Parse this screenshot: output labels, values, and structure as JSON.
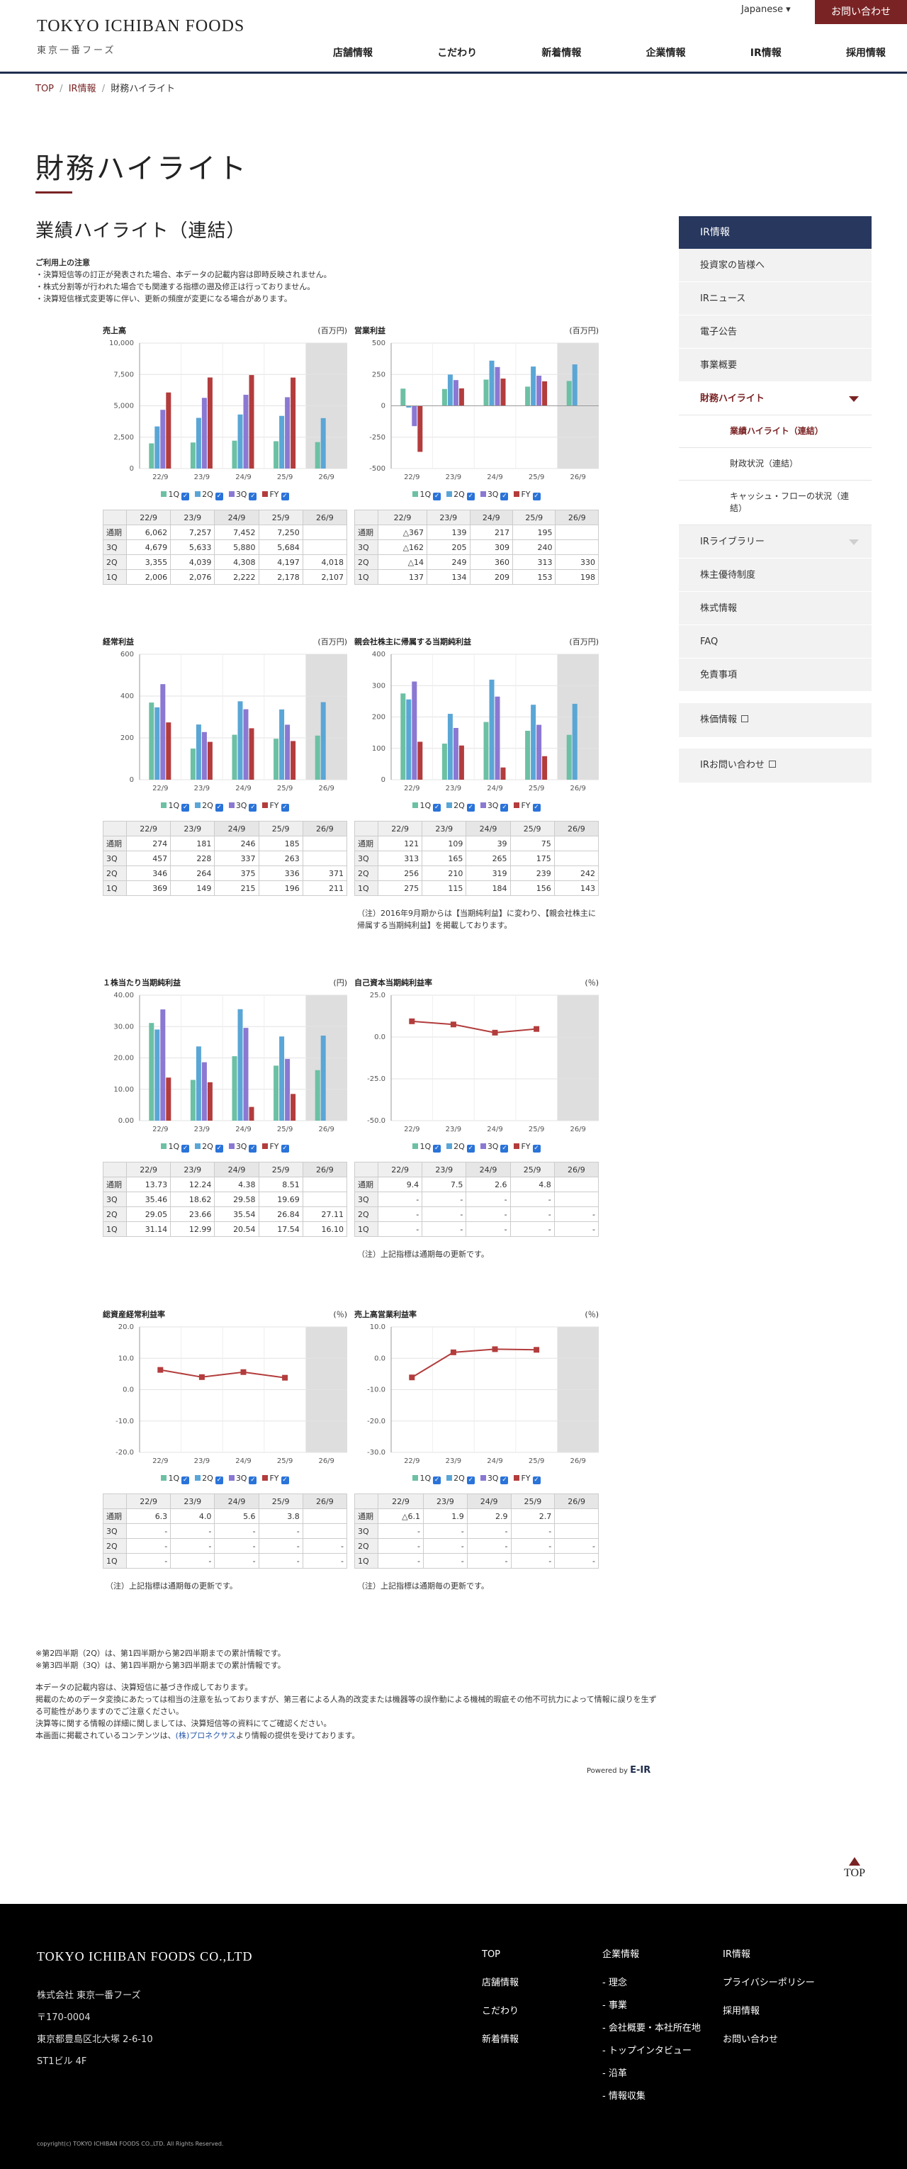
{
  "header": {
    "logo_en": "TOKYO ICHIBAN FOODS",
    "logo_ja": "東京一番フーズ",
    "language": "Japanese",
    "contact": "お問い合わせ",
    "nav": [
      "店舗情報",
      "こだわり",
      "新着情報",
      "企業情報",
      "IR情報",
      "採用情報"
    ]
  },
  "breadcrumb": {
    "top": "TOP",
    "ir": "IR情報",
    "current": "財務ハイライト",
    "sep": "/"
  },
  "page_title": "財務ハイライト",
  "section_title": "業績ハイライト（連結）",
  "notes": {
    "heading": "ご利用上の注意",
    "lines": [
      "・決算短信等の訂正が発表された場合、本データの記載内容は即時反映されません。",
      "・株式分割等が行われた場合でも関連する指標の遡及修正は行っておりません。",
      "・決算短信様式変更等に伴い、更新の頻度が変更になる場合があります。"
    ]
  },
  "legend": {
    "q1": "1Q",
    "q2": "2Q",
    "q3": "3Q",
    "fy": "FY",
    "check": "✓"
  },
  "colors": {
    "q1": "#6cc0a4",
    "q2": "#5aa6d6",
    "q3": "#8b78d2",
    "fy": "#b33c3c",
    "accent": "#7a2324",
    "navy": "#27375e"
  },
  "table_columns": [
    "22/9",
    "23/9",
    "24/9",
    "25/9",
    "26/9"
  ],
  "row_labels": [
    "通期",
    "3Q",
    "2Q",
    "1Q"
  ],
  "chart_data": [
    {
      "id": "sales",
      "type": "bar",
      "title": "売上高",
      "unit": "(百万円)",
      "categories": [
        "22/9",
        "23/9",
        "24/9",
        "25/9",
        "26/9"
      ],
      "ylim": [
        0,
        10000
      ],
      "yticks": [
        "0",
        "2,500",
        "5,000",
        "7,500",
        "10,000"
      ],
      "ytick_values": [
        0,
        2500,
        5000,
        7500,
        10000
      ],
      "series": [
        {
          "name": "1Q",
          "values": [
            2006,
            2076,
            2222,
            2178,
            2107
          ]
        },
        {
          "name": "2Q",
          "values": [
            3355,
            4039,
            4308,
            4197,
            4018
          ]
        },
        {
          "name": "3Q",
          "values": [
            4679,
            5633,
            5880,
            5684,
            null
          ]
        },
        {
          "name": "FY",
          "values": [
            6062,
            7257,
            7452,
            7250,
            null
          ]
        }
      ],
      "table": [
        [
          "6,062",
          "7,257",
          "7,452",
          "7,250",
          ""
        ],
        [
          "4,679",
          "5,633",
          "5,880",
          "5,684",
          ""
        ],
        [
          "3,355",
          "4,039",
          "4,308",
          "4,197",
          "4,018"
        ],
        [
          "2,006",
          "2,076",
          "2,222",
          "2,178",
          "2,107"
        ]
      ]
    },
    {
      "id": "op",
      "type": "bar",
      "title": "営業利益",
      "unit": "(百万円)",
      "categories": [
        "22/9",
        "23/9",
        "24/9",
        "25/9",
        "26/9"
      ],
      "ylim": [
        -500,
        500
      ],
      "yticks": [
        "-500",
        "-250",
        "0",
        "250",
        "500"
      ],
      "ytick_values": [
        -500,
        -250,
        0,
        250,
        500
      ],
      "series": [
        {
          "name": "1Q",
          "values": [
            137,
            134,
            209,
            153,
            198
          ]
        },
        {
          "name": "2Q",
          "values": [
            -14,
            249,
            360,
            313,
            330
          ]
        },
        {
          "name": "3Q",
          "values": [
            -162,
            205,
            309,
            240,
            null
          ]
        },
        {
          "name": "FY",
          "values": [
            -367,
            139,
            217,
            195,
            null
          ]
        }
      ],
      "table": [
        [
          "△367",
          "139",
          "217",
          "195",
          ""
        ],
        [
          "△162",
          "205",
          "309",
          "240",
          ""
        ],
        [
          "△14",
          "249",
          "360",
          "313",
          "330"
        ],
        [
          "137",
          "134",
          "209",
          "153",
          "198"
        ]
      ]
    },
    {
      "id": "ord",
      "type": "bar",
      "title": "経常利益",
      "unit": "(百万円)",
      "categories": [
        "22/9",
        "23/9",
        "24/9",
        "25/9",
        "26/9"
      ],
      "ylim": [
        0,
        600
      ],
      "yticks": [
        "0",
        "200",
        "400",
        "600"
      ],
      "ytick_values": [
        0,
        200,
        400,
        600
      ],
      "series": [
        {
          "name": "1Q",
          "values": [
            369,
            149,
            215,
            196,
            211
          ]
        },
        {
          "name": "2Q",
          "values": [
            346,
            264,
            375,
            336,
            371
          ]
        },
        {
          "name": "3Q",
          "values": [
            457,
            228,
            337,
            263,
            null
          ]
        },
        {
          "name": "FY",
          "values": [
            274,
            181,
            246,
            185,
            null
          ]
        }
      ],
      "table": [
        [
          "274",
          "181",
          "246",
          "185",
          ""
        ],
        [
          "457",
          "228",
          "337",
          "263",
          ""
        ],
        [
          "346",
          "264",
          "375",
          "336",
          "371"
        ],
        [
          "369",
          "149",
          "215",
          "196",
          "211"
        ]
      ]
    },
    {
      "id": "net",
      "type": "bar",
      "title": "親会社株主に帰属する当期純利益",
      "unit": "(百万円)",
      "categories": [
        "22/9",
        "23/9",
        "24/9",
        "25/9",
        "26/9"
      ],
      "ylim": [
        0,
        400
      ],
      "yticks": [
        "0",
        "100",
        "200",
        "300",
        "400"
      ],
      "ytick_values": [
        0,
        100,
        200,
        300,
        400
      ],
      "series": [
        {
          "name": "1Q",
          "values": [
            275,
            115,
            184,
            156,
            143
          ]
        },
        {
          "name": "2Q",
          "values": [
            256,
            210,
            319,
            239,
            242
          ]
        },
        {
          "name": "3Q",
          "values": [
            313,
            165,
            265,
            175,
            null
          ]
        },
        {
          "name": "FY",
          "values": [
            121,
            109,
            39,
            75,
            null
          ]
        }
      ],
      "table": [
        [
          "121",
          "109",
          "39",
          "75",
          ""
        ],
        [
          "313",
          "165",
          "265",
          "175",
          ""
        ],
        [
          "256",
          "210",
          "319",
          "239",
          "242"
        ],
        [
          "275",
          "115",
          "184",
          "156",
          "143"
        ]
      ]
    },
    {
      "id": "eps",
      "type": "bar",
      "title": "１株当たり当期純利益",
      "unit": "(円)",
      "categories": [
        "22/9",
        "23/9",
        "24/9",
        "25/9",
        "26/9"
      ],
      "ylim": [
        0,
        40
      ],
      "yticks": [
        "0.00",
        "10.00",
        "20.00",
        "30.00",
        "40.00"
      ],
      "ytick_values": [
        0,
        10,
        20,
        30,
        40
      ],
      "series": [
        {
          "name": "1Q",
          "values": [
            31.14,
            12.99,
            20.54,
            17.54,
            16.1
          ]
        },
        {
          "name": "2Q",
          "values": [
            29.05,
            23.66,
            35.54,
            26.84,
            27.11
          ]
        },
        {
          "name": "3Q",
          "values": [
            35.46,
            18.62,
            29.58,
            19.69,
            null
          ]
        },
        {
          "name": "FY",
          "values": [
            13.73,
            12.24,
            4.38,
            8.51,
            null
          ]
        }
      ],
      "table": [
        [
          "13.73",
          "12.24",
          "4.38",
          "8.51",
          ""
        ],
        [
          "35.46",
          "18.62",
          "29.58",
          "19.69",
          ""
        ],
        [
          "29.05",
          "23.66",
          "35.54",
          "26.84",
          "27.11"
        ],
        [
          "31.14",
          "12.99",
          "20.54",
          "17.54",
          "16.10"
        ]
      ]
    },
    {
      "id": "roe",
      "type": "line",
      "title": "自己資本当期純利益率",
      "unit": "(％)",
      "categories": [
        "22/9",
        "23/9",
        "24/9",
        "25/9",
        "26/9"
      ],
      "ylim": [
        -50,
        25
      ],
      "yticks": [
        "-50.0",
        "-25.0",
        "0.0",
        "25.0"
      ],
      "ytick_values": [
        -50,
        -25,
        0,
        25
      ],
      "series": [
        {
          "name": "FY",
          "values": [
            9.4,
            7.5,
            2.6,
            4.8,
            null
          ]
        }
      ],
      "table": [
        [
          "9.4",
          "7.5",
          "2.6",
          "4.8",
          ""
        ],
        [
          "-",
          "-",
          "-",
          "-",
          ""
        ],
        [
          "-",
          "-",
          "-",
          "-",
          "-"
        ],
        [
          "-",
          "-",
          "-",
          "-",
          "-"
        ]
      ]
    },
    {
      "id": "roa",
      "type": "line",
      "title": "総資産経常利益率",
      "unit": "(％)",
      "categories": [
        "22/9",
        "23/9",
        "24/9",
        "25/9",
        "26/9"
      ],
      "ylim": [
        -20,
        20
      ],
      "yticks": [
        "-20.0",
        "-10.0",
        "0.0",
        "10.0",
        "20.0"
      ],
      "ytick_values": [
        -20,
        -10,
        0,
        10,
        20
      ],
      "series": [
        {
          "name": "FY",
          "values": [
            6.3,
            4.0,
            5.6,
            3.8,
            null
          ]
        }
      ],
      "table": [
        [
          "6.3",
          "4.0",
          "5.6",
          "3.8",
          ""
        ],
        [
          "-",
          "-",
          "-",
          "-",
          ""
        ],
        [
          "-",
          "-",
          "-",
          "-",
          "-"
        ],
        [
          "-",
          "-",
          "-",
          "-",
          "-"
        ]
      ]
    },
    {
      "id": "opm",
      "type": "line",
      "title": "売上高営業利益率",
      "unit": "(％)",
      "categories": [
        "22/9",
        "23/9",
        "24/9",
        "25/9",
        "26/9"
      ],
      "ylim": [
        -30,
        10
      ],
      "yticks": [
        "-30.0",
        "-20.0",
        "-10.0",
        "0.0",
        "10.0"
      ],
      "ytick_values": [
        -30,
        -20,
        -10,
        0,
        10
      ],
      "series": [
        {
          "name": "FY",
          "values": [
            -6.1,
            1.9,
            2.9,
            2.7,
            null
          ]
        }
      ],
      "table": [
        [
          "△6.1",
          "1.9",
          "2.9",
          "2.7",
          ""
        ],
        [
          "-",
          "-",
          "-",
          "-",
          ""
        ],
        [
          "-",
          "-",
          "-",
          "-",
          "-"
        ],
        [
          "-",
          "-",
          "-",
          "-",
          "-"
        ]
      ]
    }
  ],
  "footnotes": {
    "net": "（注）2016年9月期からは【当期純利益】に変わり、【親会社株主に帰属する当期純利益】を掲載しております。",
    "annual": "（注）上記指標は通期毎の更新です。"
  },
  "bottom_notes": {
    "q2": "※第2四半期（2Q）は、第1四半期から第2四半期までの累計情報です。",
    "q3": "※第3四半期（3Q）は、第1四半期から第3四半期までの累計情報です。",
    "l1": "本データの記載内容は、決算短信に基づき作成しております。",
    "l2": "掲載のためのデータ変換にあたっては相当の注意を払っておりますが、第三者による人為的改変または機器等の誤作動による機械的瑕疵その他不可抗力によって情報に誤りを生ずる可能性がありますのでご注意ください。",
    "l3": "決算等に関する情報の詳細に関しましては、決算短信等の資料にてご確認ください。",
    "l4a": "本画面に掲載されているコンテンツは、",
    "l4link": "(株)プロネクサス",
    "l4b": "より情報の提供を受けております。"
  },
  "powered": {
    "label": "Powered by",
    "brand": "E-IR"
  },
  "sidebar": {
    "head": "IR情報",
    "items": [
      "投資家の皆様へ",
      "IRニュース",
      "電子公告",
      "事業概要"
    ],
    "active": "財務ハイライト",
    "sub": [
      "業績ハイライト（連結）",
      "財政状況（連結）",
      "キャッシュ・フローの状況（連結）"
    ],
    "items2_first": "IRライブラリー",
    "items2": [
      "株主優待制度",
      "株式情報",
      "FAQ",
      "免責事項"
    ],
    "box1": "株価情報",
    "box2": "IRお問い合わせ"
  },
  "top_button": "TOP",
  "footer": {
    "logo": "TOKYO ICHIBAN FOODS CO.,LTD",
    "addr": [
      "株式会社 東京一番フーズ",
      "〒170-0004",
      "東京都豊島区北大塚 2-6-10",
      "ST1ビル 4F"
    ],
    "col1": [
      "TOP",
      "店舗情報",
      "こだわり",
      "新着情報"
    ],
    "col2_head": "企業情報",
    "col2": [
      "- 理念",
      "- 事業",
      "- 会社概要・本社所在地",
      "- トップインタビュー",
      "- 沿革",
      "- 情報収集"
    ],
    "col3": [
      "IR情報",
      "プライバシーポリシー",
      "採用情報",
      "お問い合わせ"
    ],
    "copyright": "copyright(c) TOKYO ICHIBAN FOODS CO.,LTD. All Rights Reserved."
  }
}
